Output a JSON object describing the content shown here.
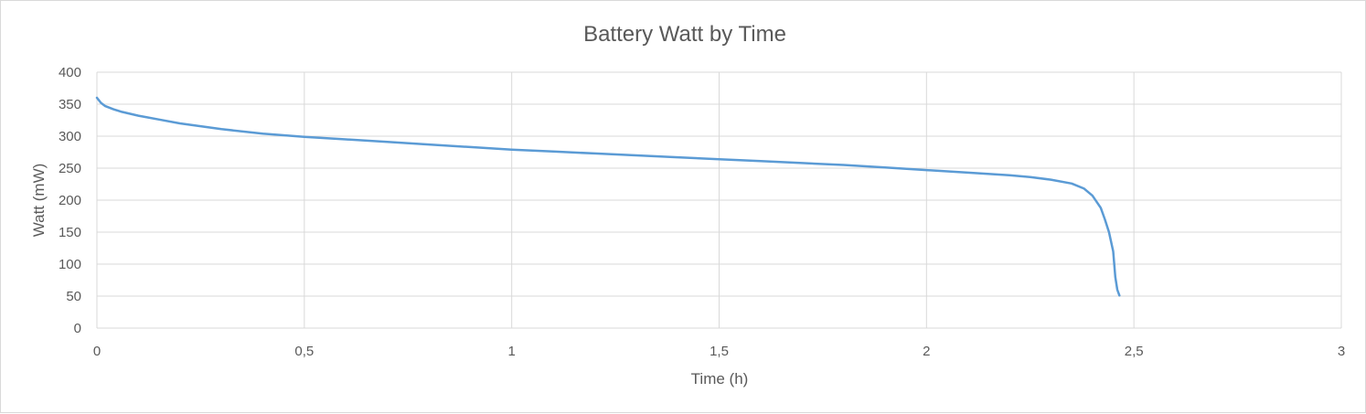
{
  "chart_data": {
    "type": "line",
    "title": "Battery Watt by Time",
    "xlabel": "Time (h)",
    "ylabel": "Watt (mW)",
    "xlim": [
      0,
      3
    ],
    "ylim": [
      0,
      400
    ],
    "x_ticks": [
      0,
      0.5,
      1,
      1.5,
      2,
      2.5,
      3
    ],
    "x_tick_labels": [
      "0",
      "0,5",
      "1",
      "1,5",
      "2",
      "2,5",
      "3"
    ],
    "y_ticks": [
      0,
      50,
      100,
      150,
      200,
      250,
      300,
      350,
      400
    ],
    "y_tick_labels": [
      "0",
      "50",
      "100",
      "150",
      "200",
      "250",
      "300",
      "350",
      "400"
    ],
    "grid": true,
    "legend": "none",
    "series": [
      {
        "color": "#5b9bd5",
        "x": [
          0,
          0.01,
          0.02,
          0.04,
          0.06,
          0.1,
          0.15,
          0.2,
          0.3,
          0.4,
          0.5,
          0.6,
          0.7,
          0.8,
          0.9,
          1.0,
          1.1,
          1.2,
          1.3,
          1.4,
          1.5,
          1.6,
          1.7,
          1.8,
          1.9,
          2.0,
          2.1,
          2.2,
          2.25,
          2.3,
          2.35,
          2.38,
          2.4,
          2.42,
          2.43,
          2.44,
          2.45,
          2.455,
          2.46,
          2.465
        ],
        "y": [
          360,
          352,
          347,
          342,
          338,
          332,
          326,
          320,
          311,
          304,
          299,
          295,
          291,
          287,
          283,
          279,
          276,
          273,
          270,
          267,
          264,
          261,
          258,
          255,
          251,
          247,
          243,
          239,
          236,
          232,
          226,
          218,
          207,
          188,
          170,
          150,
          120,
          80,
          60,
          51
        ]
      }
    ]
  }
}
